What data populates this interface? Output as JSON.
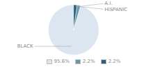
{
  "chart_data": {
    "type": "pie",
    "categories": [
      "BLACK",
      "A.I.",
      "HISPANIC"
    ],
    "values": [
      95.6,
      2.2,
      2.2
    ],
    "value_labels": [
      "95.6%",
      "2.2%",
      "2.2%"
    ],
    "colors": [
      "#dce6f0",
      "#6699aa",
      "#2e5f7a"
    ],
    "legend": "bottom"
  }
}
